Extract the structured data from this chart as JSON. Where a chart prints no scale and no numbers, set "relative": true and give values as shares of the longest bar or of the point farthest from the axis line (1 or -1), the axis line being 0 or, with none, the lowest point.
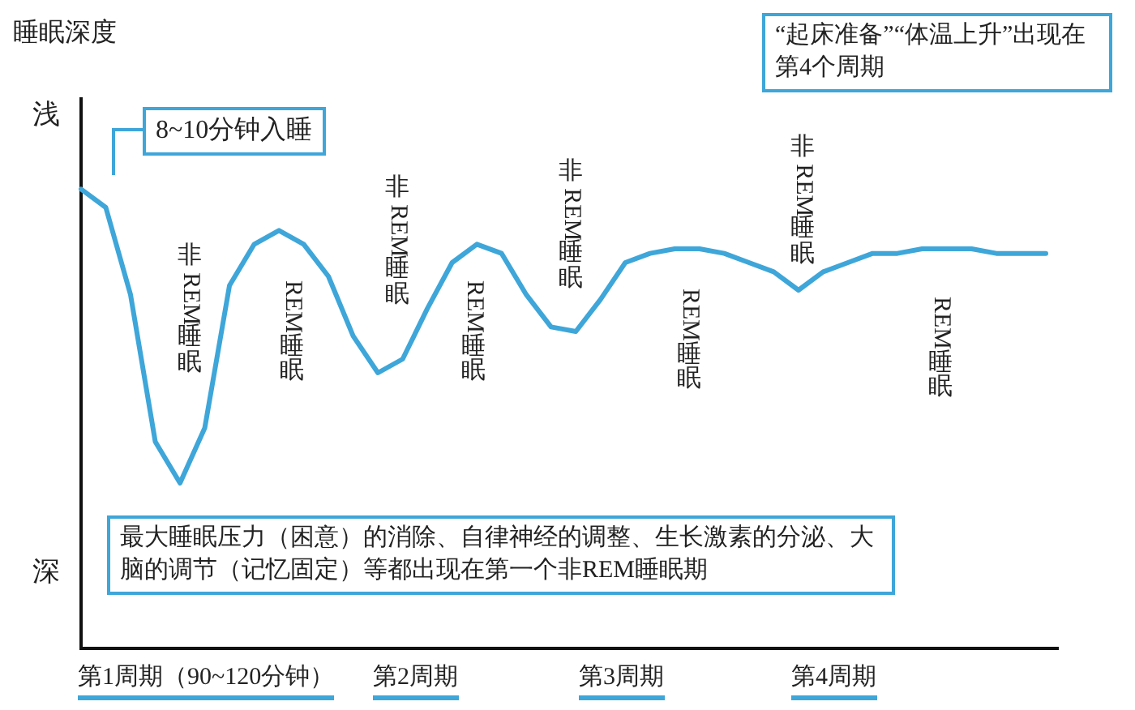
{
  "chart_data": {
    "type": "line",
    "relative": true,
    "grid": false,
    "marker": "none",
    "color": "#3ea6d9",
    "categories": [
      null,
      null,
      null,
      null,
      null,
      null,
      null,
      null,
      null,
      null,
      null,
      null,
      null,
      null,
      null,
      null,
      null,
      null,
      null,
      null,
      null,
      null,
      null,
      null,
      null,
      null,
      null,
      null,
      null,
      null,
      null,
      null,
      null,
      null,
      null,
      null,
      null,
      null,
      null,
      null
    ],
    "values": [
      1.0,
      0.96,
      0.77,
      0.45,
      0.36,
      0.48,
      0.79,
      0.88,
      0.91,
      0.88,
      0.81,
      0.68,
      0.6,
      0.63,
      0.74,
      0.84,
      0.88,
      0.86,
      0.77,
      0.7,
      0.69,
      0.76,
      0.84,
      0.86,
      0.87,
      0.87,
      0.86,
      0.84,
      0.82,
      0.78,
      0.82,
      0.84,
      0.86,
      0.86,
      0.87,
      0.87,
      0.87,
      0.86,
      0.86,
      0.86
    ],
    "annotations": [
      "睡眠深度",
      "浅",
      "深",
      "“起床准备”“体温上升”出现在第4个周期",
      "最大睡眠压力（困意）的消除、自律神经的调整、生长激素的分泌、大脑的调节（记忆固定）等都出现在第一个非REM睡眠期",
      "第1周期（90~120分钟）",
      "第2周期",
      "第3周期",
      "第4周期",
      "8~10分钟入睡",
      "非REM睡眠",
      "REM睡眠",
      "非REM睡眠",
      "REM睡眠",
      "非REM睡眠",
      "REM睡眠",
      "非REM睡眠",
      "REM睡眠"
    ]
  }
}
